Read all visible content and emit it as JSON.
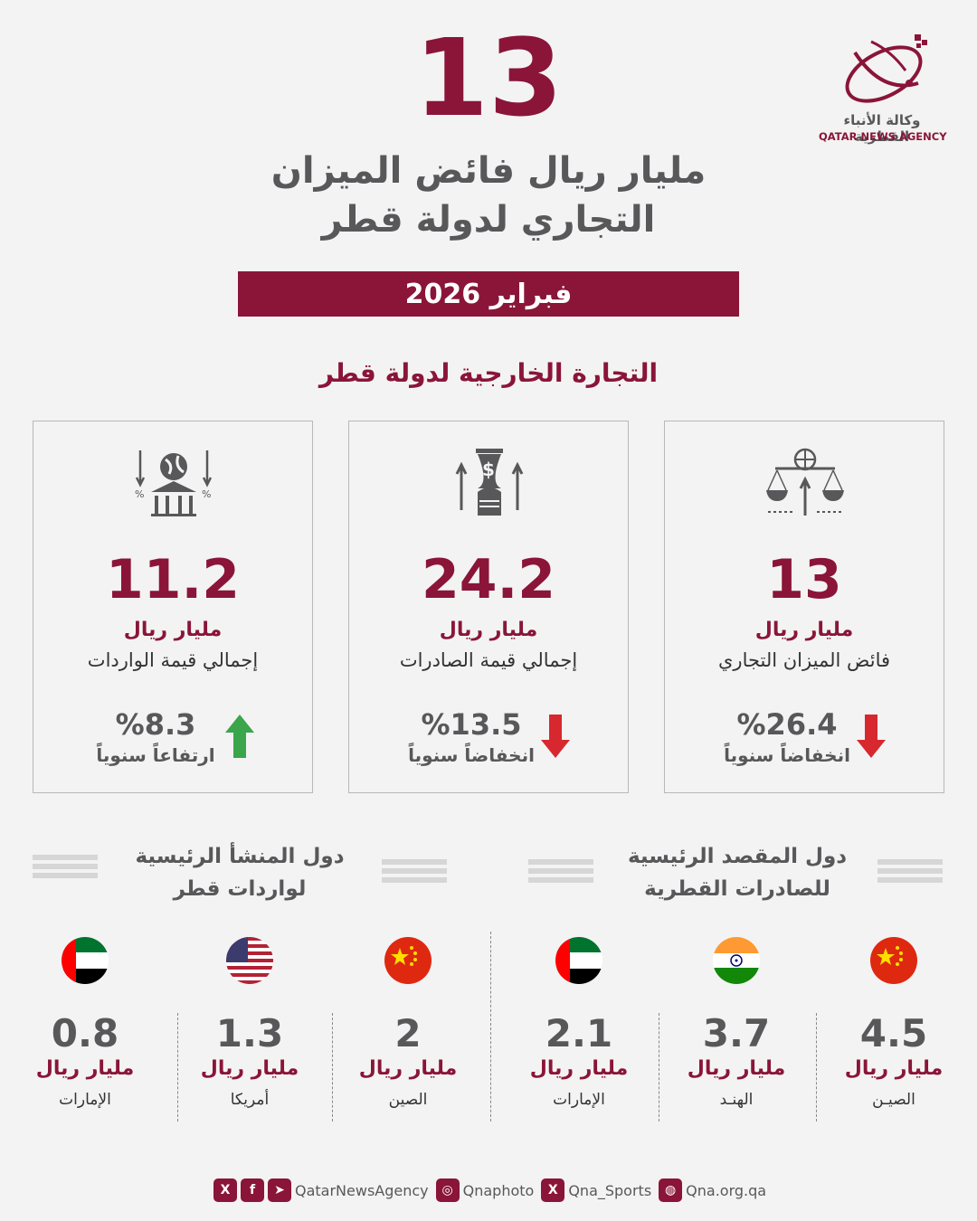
{
  "header": {
    "big_number": "13",
    "headline_line1": "مليار ريال فائض الميزان",
    "headline_line2": "التجاري لدولة قطر",
    "date": "فبراير 2026"
  },
  "logo": {
    "name_ar": "وكالة الأنباء القطرية",
    "name_en": "QATAR NEWS AGENCY"
  },
  "section_title": "التجارة الخارجية لدولة قطر",
  "cards": [
    {
      "icon": "trade-balance-icon",
      "value": "13",
      "unit": "مليار ريال",
      "label": "فائض الميزان التجاري",
      "percent": "%26.4",
      "trend": "انخفاضاً سنوياً",
      "direction": "down"
    },
    {
      "icon": "exports-icon",
      "value": "24.2",
      "unit": "مليار ريال",
      "label": "إجمالي قيمة الصادرات",
      "percent": "%13.5",
      "trend": "انخفاضاً سنوياً",
      "direction": "down"
    },
    {
      "icon": "imports-icon",
      "value": "11.2",
      "unit": "مليار ريال",
      "label": "إجمالي قيمة الواردات",
      "percent": "%8.3",
      "trend": "ارتفاعاً سنوياً",
      "direction": "up"
    }
  ],
  "colors": {
    "maroon": "#8a1538",
    "gray_text": "#58585a",
    "arrow_down": "#d7282f",
    "arrow_up": "#3aa54a"
  },
  "exports_section": {
    "title_line1": "دول المقصد الرئيسية",
    "title_line2": "للصادرات القطرية",
    "countries": [
      {
        "flag": "china-flag",
        "value": "4.5",
        "unit": "مليار ريال",
        "name": "الصيـن"
      },
      {
        "flag": "india-flag",
        "value": "3.7",
        "unit": "مليار ريال",
        "name": "الهنـد"
      },
      {
        "flag": "uae-flag",
        "value": "2.1",
        "unit": "مليار ريال",
        "name": "الإمارات"
      }
    ]
  },
  "imports_section": {
    "title_line1": "دول المنشأ الرئيسية",
    "title_line2": "لواردات قطر",
    "countries": [
      {
        "flag": "china-flag",
        "value": "2",
        "unit": "مليار ريال",
        "name": "الصين"
      },
      {
        "flag": "usa-flag",
        "value": "1.3",
        "unit": "مليار ريال",
        "name": "أمريكا"
      },
      {
        "flag": "uae-flag",
        "value": "0.8",
        "unit": "مليار ريال",
        "name": "الإمارات"
      }
    ]
  },
  "footer": {
    "handle1": "QatarNewsAgency",
    "handle2": "Qnaphoto",
    "handle3": "Qna_Sports",
    "website": "Qna.org.qa"
  }
}
